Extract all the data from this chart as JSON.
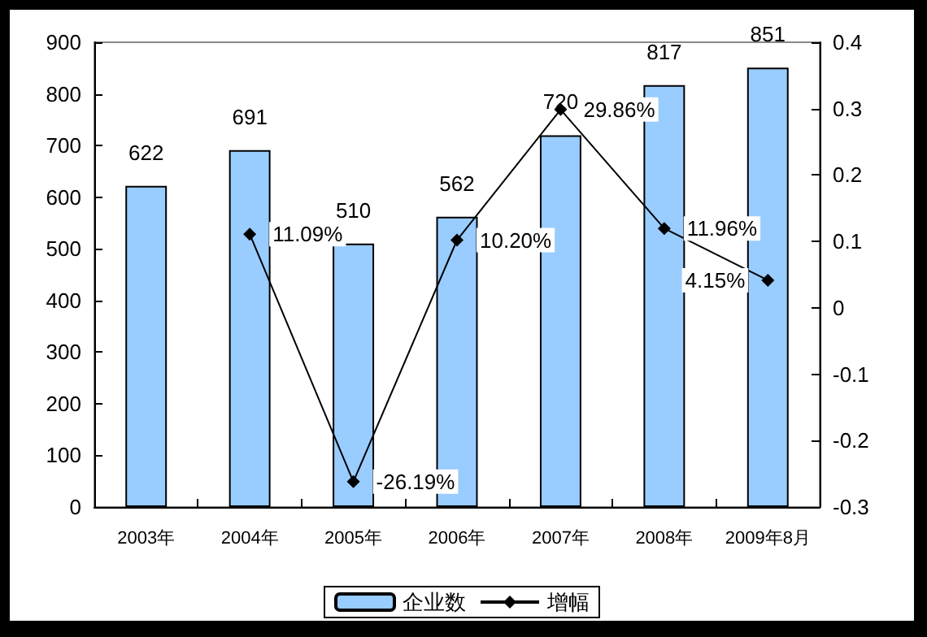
{
  "chart_data": {
    "type": "bar",
    "categories": [
      "2003年",
      "2004年",
      "2005年",
      "2006年",
      "2007年",
      "2008年",
      "2009年8月"
    ],
    "series": [
      {
        "name": "企业数",
        "color": "#99ccff",
        "values": [
          622,
          691,
          510,
          562,
          720,
          817,
          851
        ],
        "value_labels": [
          "622",
          "691",
          "510",
          "562",
          "720",
          "817",
          "851"
        ]
      },
      {
        "name": "增幅",
        "type": "line",
        "axis": "y2",
        "color": "#000000",
        "marker": "diamond",
        "values": [
          null,
          0.1109,
          -0.2619,
          0.102,
          0.2986,
          0.1196,
          0.0415
        ],
        "value_labels": [
          null,
          "11.09%",
          "-26.19%",
          "10.20%",
          "29.86%",
          "11.96%",
          "4.15%"
        ]
      }
    ],
    "ylim": [
      0,
      900
    ],
    "yticks": [
      0,
      100,
      200,
      300,
      400,
      500,
      600,
      700,
      800,
      900
    ],
    "y2lim": [
      -0.3,
      0.4
    ],
    "y2ticks": [
      -0.3,
      -0.2,
      -0.1,
      0,
      0.1,
      0.2,
      0.3,
      0.4
    ],
    "grid": false,
    "legend": "bottom"
  }
}
